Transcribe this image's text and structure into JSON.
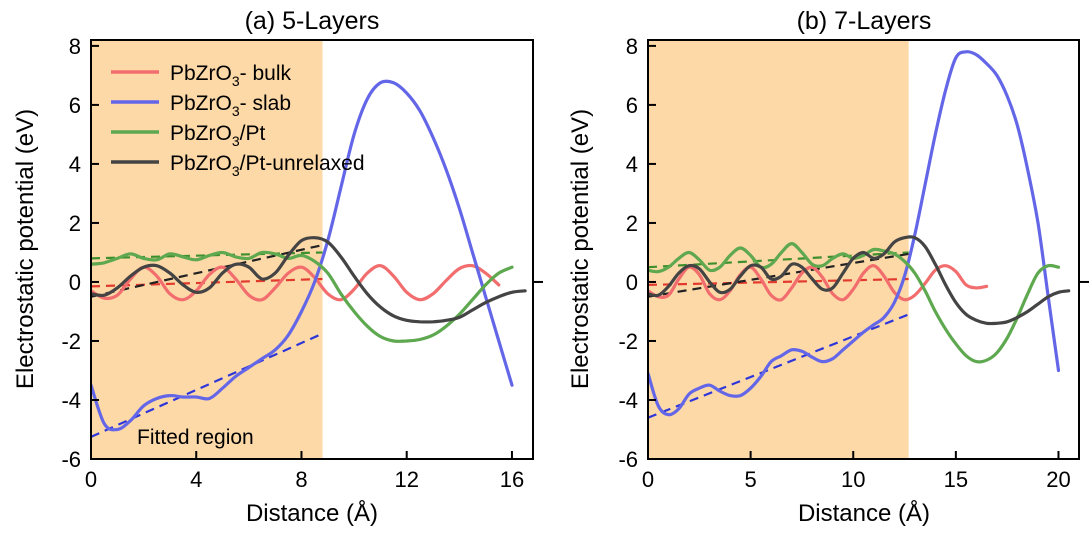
{
  "chart_data": [
    {
      "type": "line",
      "title": "(a) 5-Layers",
      "xlabel": "Distance (Å)",
      "ylabel": "Electrostatic potential (eV)",
      "xlim": [
        0,
        16.8
      ],
      "ylim": [
        -6,
        8.2
      ],
      "xticks": [
        0,
        4,
        8,
        12,
        16
      ],
      "yticks": [
        -6,
        -4,
        -2,
        0,
        2,
        4,
        6,
        8
      ],
      "legend": "top-left",
      "shaded_region": {
        "x": [
          0,
          8.8
        ],
        "label": "Fitted region",
        "color": "#fdd9a8"
      },
      "series": [
        {
          "name": "PbZrO₃- bulk",
          "name_parts": [
            "PbZrO",
            "3",
            "- bulk"
          ],
          "color": "#f26d6d",
          "x": [
            0,
            0.5,
            1,
            1.5,
            2,
            2.5,
            3,
            3.5,
            4,
            4.5,
            5,
            5.5,
            6,
            6.5,
            7,
            7.5,
            8,
            8.5,
            9,
            9.5,
            10,
            10.5,
            11,
            11.5,
            12,
            12.5,
            13,
            13.5,
            14,
            14.5,
            15,
            15.5
          ],
          "y": [
            -0.3,
            -0.55,
            -0.45,
            0.1,
            0.5,
            0.2,
            -0.4,
            -0.6,
            -0.3,
            0.25,
            0.5,
            0.1,
            -0.45,
            -0.6,
            -0.2,
            0.3,
            0.5,
            0.15,
            -0.4,
            -0.6,
            -0.25,
            0.3,
            0.55,
            0.2,
            -0.35,
            -0.6,
            -0.4,
            0.05,
            0.45,
            0.55,
            0.3,
            -0.1
          ]
        },
        {
          "name": "PbZrO₃- slab",
          "name_parts": [
            "PbZrO",
            "3",
            "- slab"
          ],
          "color": "#6466e8",
          "x": [
            0,
            0.5,
            1,
            1.5,
            2,
            2.5,
            3,
            3.5,
            4,
            4.5,
            5,
            5.5,
            6,
            6.5,
            7,
            7.5,
            8,
            8.5,
            9,
            9.5,
            10,
            10.5,
            11,
            11.5,
            12,
            12.5,
            13,
            13.5,
            14,
            14.5,
            15,
            15.5,
            16
          ],
          "y": [
            -3.5,
            -4.8,
            -5.0,
            -4.7,
            -4.2,
            -3.95,
            -3.85,
            -3.9,
            -3.9,
            -3.95,
            -3.6,
            -3.2,
            -2.9,
            -2.6,
            -2.3,
            -1.8,
            -1.0,
            0.0,
            1.4,
            3.2,
            5.0,
            6.2,
            6.75,
            6.75,
            6.4,
            5.8,
            4.9,
            3.8,
            2.5,
            1.0,
            -0.5,
            -2.0,
            -3.5
          ]
        },
        {
          "name": "PbZrO₃/Pt",
          "name_parts": [
            "PbZrO",
            "3",
            "/Pt"
          ],
          "color": "#5ea84f",
          "x": [
            0,
            0.5,
            1,
            1.5,
            2,
            2.5,
            3,
            3.5,
            4,
            4.5,
            5,
            5.5,
            6,
            6.5,
            7,
            7.5,
            8,
            8.5,
            9,
            9.5,
            10,
            10.5,
            11,
            11.5,
            12,
            12.5,
            13,
            13.5,
            14,
            14.5,
            15,
            15.5,
            16
          ],
          "y": [
            0.6,
            0.65,
            0.8,
            0.95,
            0.8,
            0.75,
            0.95,
            0.85,
            0.75,
            0.9,
            1.0,
            0.85,
            0.8,
            1.0,
            0.95,
            0.8,
            0.9,
            0.7,
            0.3,
            -0.4,
            -1.0,
            -1.5,
            -1.85,
            -2.0,
            -2.0,
            -1.95,
            -1.8,
            -1.5,
            -1.1,
            -0.6,
            -0.1,
            0.3,
            0.5
          ]
        },
        {
          "name": "PbZrO₃/Pt-unrelaxed",
          "name_parts": [
            "PbZrO",
            "3",
            "/Pt-unrelaxed"
          ],
          "color": "#444444",
          "x": [
            0,
            0.5,
            1,
            1.5,
            2,
            2.5,
            3,
            3.5,
            4,
            4.5,
            5,
            5.5,
            6,
            6.5,
            7,
            7.5,
            8,
            8.5,
            9,
            9.5,
            10,
            10.5,
            11,
            11.5,
            12,
            12.5,
            13,
            13.5,
            14,
            14.5,
            15,
            15.5,
            16,
            16.5
          ],
          "y": [
            -0.4,
            -0.45,
            -0.2,
            0.2,
            0.5,
            0.55,
            0.3,
            -0.1,
            -0.35,
            -0.2,
            0.3,
            0.6,
            0.5,
            0.1,
            0.3,
            0.9,
            1.4,
            1.5,
            1.35,
            0.85,
            0.2,
            -0.4,
            -0.85,
            -1.15,
            -1.3,
            -1.35,
            -1.35,
            -1.3,
            -1.2,
            -0.95,
            -0.7,
            -0.5,
            -0.35,
            -0.3
          ]
        }
      ],
      "fit_lines": [
        {
          "color": "#e23b2e",
          "x": [
            0,
            8.8
          ],
          "y": [
            -0.15,
            0.1
          ]
        },
        {
          "color": "#2f36d9",
          "x": [
            0,
            8.8
          ],
          "y": [
            -5.25,
            -1.75
          ]
        },
        {
          "color": "#3f8f2d",
          "x": [
            0,
            8.8
          ],
          "y": [
            0.8,
            1.0
          ]
        },
        {
          "color": "#222222",
          "x": [
            0,
            8.8
          ],
          "y": [
            -0.5,
            1.25
          ]
        }
      ]
    },
    {
      "type": "line",
      "title": "(b) 7-Layers",
      "xlabel": "Distance (Å)",
      "ylabel": "Electrostatic potential (eV)",
      "xlim": [
        0,
        21
      ],
      "ylim": [
        -6,
        8.2
      ],
      "xticks": [
        0,
        5,
        10,
        15,
        20
      ],
      "yticks": [
        -6,
        -4,
        -2,
        0,
        2,
        4,
        6,
        8
      ],
      "shaded_region": {
        "x": [
          0,
          12.7
        ],
        "color": "#fdd9a8"
      },
      "series": [
        {
          "name": "PbZrO₃- bulk",
          "color": "#f26d6d",
          "x": [
            0,
            0.5,
            1,
            1.5,
            2,
            2.5,
            3,
            3.5,
            4,
            4.5,
            5,
            5.5,
            6,
            6.5,
            7,
            7.5,
            8,
            8.5,
            9,
            9.5,
            10,
            10.5,
            11,
            11.5,
            12,
            12.5,
            13,
            13.5,
            14,
            14.5,
            15,
            15.5,
            16,
            16.5
          ],
          "y": [
            -0.3,
            -0.5,
            -0.45,
            0.1,
            0.5,
            0.25,
            -0.4,
            -0.6,
            -0.3,
            0.25,
            0.5,
            0.1,
            -0.45,
            -0.6,
            -0.2,
            0.3,
            0.5,
            0.15,
            -0.4,
            -0.6,
            -0.25,
            0.3,
            0.55,
            0.2,
            -0.35,
            -0.6,
            -0.45,
            -0.05,
            0.4,
            0.55,
            0.35,
            -0.1,
            -0.2,
            -0.15
          ]
        },
        {
          "name": "PbZrO₃- slab",
          "color": "#6466e8",
          "x": [
            0,
            0.5,
            1,
            1.5,
            2,
            2.5,
            3,
            3.5,
            4,
            4.5,
            5,
            5.5,
            6,
            6.5,
            7,
            7.5,
            8,
            8.5,
            9,
            9.5,
            10,
            10.5,
            11,
            11.5,
            12,
            12.5,
            13,
            13.5,
            14,
            14.5,
            15,
            15.5,
            16,
            16.5,
            17,
            17.5,
            18,
            18.5,
            19,
            19.5,
            20
          ],
          "y": [
            -3.1,
            -4.2,
            -4.5,
            -4.3,
            -3.8,
            -3.6,
            -3.5,
            -3.7,
            -3.85,
            -3.85,
            -3.6,
            -3.2,
            -2.7,
            -2.5,
            -2.3,
            -2.35,
            -2.55,
            -2.7,
            -2.6,
            -2.3,
            -2.0,
            -1.7,
            -1.45,
            -1.2,
            -0.7,
            0.2,
            1.6,
            3.3,
            5.0,
            6.5,
            7.6,
            7.8,
            7.7,
            7.4,
            7.0,
            6.3,
            5.3,
            3.8,
            2.0,
            -0.5,
            -3.0
          ]
        },
        {
          "name": "PbZrO₃/Pt",
          "color": "#5ea84f",
          "x": [
            0,
            0.5,
            1,
            1.5,
            2,
            2.5,
            3,
            3.5,
            4,
            4.5,
            5,
            5.5,
            6,
            6.5,
            7,
            7.5,
            8,
            8.5,
            9,
            9.5,
            10,
            10.5,
            11,
            11.5,
            12,
            12.5,
            13,
            13.5,
            14,
            14.5,
            15,
            15.5,
            16,
            16.5,
            17,
            17.5,
            18,
            18.5,
            19,
            19.5,
            20
          ],
          "y": [
            0.4,
            0.35,
            0.5,
            0.8,
            1.0,
            0.75,
            0.4,
            0.5,
            0.9,
            1.15,
            0.9,
            0.5,
            0.6,
            1.0,
            1.3,
            1.0,
            0.6,
            0.55,
            0.8,
            0.95,
            0.8,
            0.9,
            1.1,
            1.05,
            0.95,
            0.7,
            0.3,
            -0.3,
            -1.0,
            -1.6,
            -2.1,
            -2.5,
            -2.7,
            -2.65,
            -2.4,
            -1.9,
            -1.2,
            -0.4,
            0.3,
            0.55,
            0.5
          ]
        },
        {
          "name": "PbZrO₃/Pt-unrelaxed",
          "color": "#444444",
          "x": [
            0,
            0.5,
            1,
            1.5,
            2,
            2.5,
            3,
            3.5,
            4,
            4.5,
            5,
            5.5,
            6,
            6.5,
            7,
            7.5,
            8,
            8.5,
            9,
            9.5,
            10,
            10.5,
            11,
            11.5,
            12,
            12.5,
            13,
            13.5,
            14,
            14.5,
            15,
            15.5,
            16,
            16.5,
            17,
            17.5,
            18,
            18.5,
            19,
            19.5,
            20,
            20.5
          ],
          "y": [
            -0.4,
            -0.45,
            -0.15,
            0.3,
            0.55,
            0.45,
            0.0,
            -0.35,
            -0.25,
            0.2,
            0.55,
            0.5,
            0.1,
            0.2,
            0.6,
            0.5,
            0.1,
            -0.25,
            -0.2,
            0.3,
            0.8,
            1.0,
            0.8,
            0.95,
            1.35,
            1.5,
            1.5,
            1.2,
            0.6,
            -0.1,
            -0.7,
            -1.1,
            -1.3,
            -1.4,
            -1.4,
            -1.35,
            -1.2,
            -1.0,
            -0.75,
            -0.5,
            -0.35,
            -0.3
          ]
        }
      ],
      "fit_lines": [
        {
          "color": "#e23b2e",
          "x": [
            0,
            12.7
          ],
          "y": [
            -0.1,
            0.1
          ]
        },
        {
          "color": "#2f36d9",
          "x": [
            0,
            12.7
          ],
          "y": [
            -4.6,
            -1.1
          ]
        },
        {
          "color": "#3f8f2d",
          "x": [
            0,
            12.7
          ],
          "y": [
            0.5,
            1.0
          ]
        },
        {
          "color": "#222222",
          "x": [
            0,
            12.7
          ],
          "y": [
            -0.5,
            0.95
          ]
        }
      ]
    }
  ]
}
